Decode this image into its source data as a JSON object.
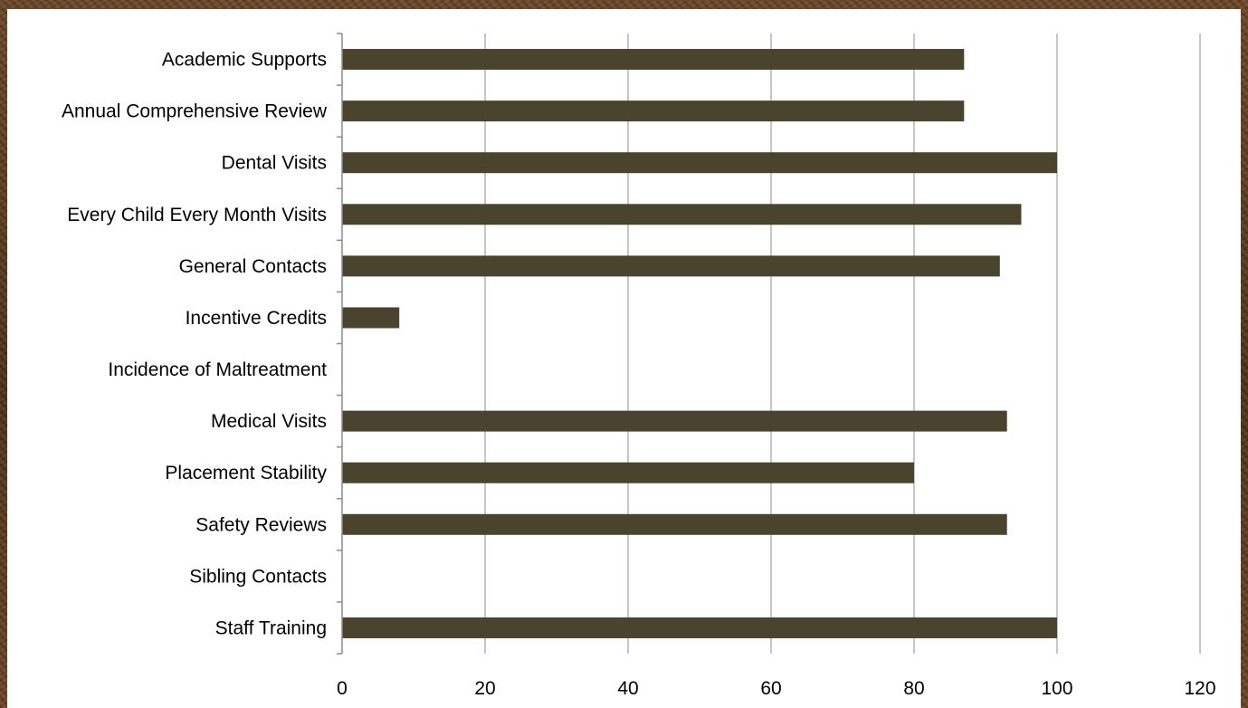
{
  "chart_data": {
    "type": "bar",
    "orientation": "horizontal",
    "categories": [
      "Academic Supports",
      "Annual Comprehensive Review",
      "Dental Visits",
      "Every Child Every Month Visits",
      "General Contacts",
      "Incentive Credits",
      "Incidence of Maltreatment",
      "Medical Visits",
      "Placement Stability",
      "Safety Reviews",
      "Sibling Contacts",
      "Staff Training"
    ],
    "values": [
      87,
      87,
      100,
      95,
      92,
      8,
      0,
      93,
      80,
      93,
      0,
      100
    ],
    "xlim": [
      0,
      120
    ],
    "xticks": [
      0,
      20,
      40,
      60,
      80,
      100,
      120
    ],
    "grid": true,
    "colors": {
      "bar": "#4a432d",
      "grid": "#8c8c8c",
      "axis": "#8c8c8c",
      "frame": "#5a3a22"
    }
  }
}
